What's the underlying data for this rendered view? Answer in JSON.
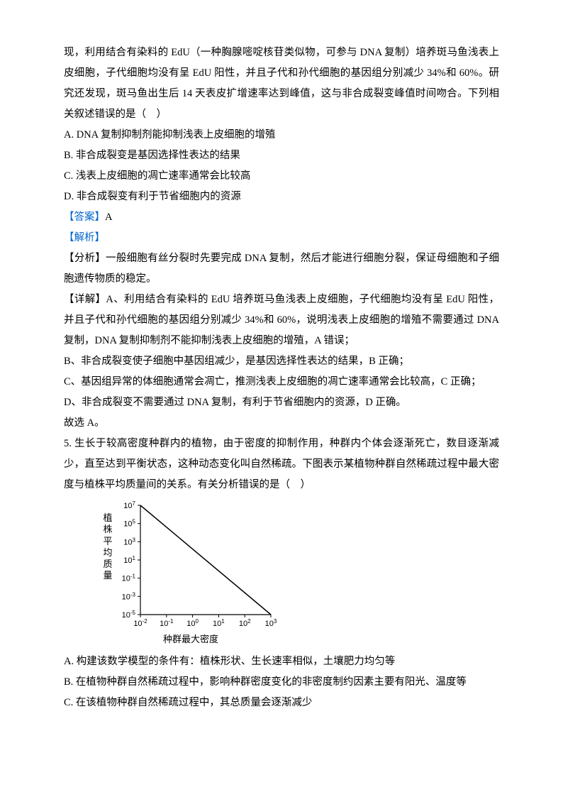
{
  "intro": "现，利用结合有染料的 EdU（一种胸腺嘧啶核苷类似物，可参与 DNA 复制）培养斑马鱼浅表上皮细胞，子代细胞均没有呈 EdU 阳性，并且子代和孙代细胞的基因组分别减少 34%和 60%。研究还发现，斑马鱼出生后 14 天表皮扩增速率达到峰值，这与非合成裂变峰值时间吻合。下列相关叙述错误的是（　）",
  "opts4": {
    "A": "A. DNA 复制抑制剂能抑制浅表上皮细胞的增殖",
    "B": "B. 非合成裂变是基因选择性表达的结果",
    "C": "C. 浅表上皮细胞的凋亡速率通常会比较高",
    "D": "D. 非合成裂变有利于节省细胞内的资源"
  },
  "answer4_label": "【答案】",
  "answer4_value": "A",
  "jiexi_label": "【解析】",
  "fenxi": "【分析】一般细胞有丝分裂时先要完成 DNA 复制，然后才能进行细胞分裂，保证母细胞和子细胞遗传物质的稳定。",
  "xiangjie_A": "【详解】A、利用结合有染料的 EdU 培养斑马鱼浅表上皮细胞，子代细胞均没有呈 EdU 阳性，并且子代和孙代细胞的基因组分别减少 34%和 60%，说明浅表上皮细胞的增殖不需要通过 DNA 复制，DNA 复制抑制剂不能抑制浅表上皮细胞的增殖，A 错误；",
  "xiangjie_B": "B、非合成裂变使子细胞中基因组减少，是基因选择性表达的结果，B 正确；",
  "xiangjie_C": "C、基因组异常的体细胞通常会凋亡，推测浅表上皮细胞的凋亡速率通常会比较高，C 正确；",
  "xiangjie_D": "D、非合成裂变不需要通过 DNA 复制，有利于节省细胞内的资源，D 正确。",
  "guxuan": "故选 A。",
  "q5": "5. 生长于较高密度种群内的植物，由于密度的抑制作用，种群内个体会逐渐死亡，数目逐渐减少，直至达到平衡状态，这种动态变化叫自然稀疏。下图表示某植物种群自然稀疏过程中最大密度与植株平均质量间的关系。有关分析错误的是（　）",
  "chart": {
    "type": "line",
    "x_ticks": [
      -2,
      -1,
      0,
      1,
      2,
      3
    ],
    "x_tick_labels": [
      "10⁻²",
      "10⁻¹",
      "10⁰",
      "10¹",
      "10²",
      "10³"
    ],
    "y_ticks": [
      -5,
      -3,
      -1,
      1,
      3,
      5,
      7
    ],
    "y_tick_labels": [
      "10⁻⁵",
      "10⁻³",
      "10⁻¹",
      "10¹",
      "10³",
      "10⁵",
      "10⁷"
    ],
    "line": {
      "x1": -2,
      "y1": 7,
      "x2": 3,
      "y2": -5
    },
    "ylabel": "植株平均质量",
    "xlabel": "种群最大密度",
    "axis_color": "#000000",
    "line_color": "#000000",
    "line_width": 1.5,
    "background": "#ffffff",
    "tick_font_size": 11
  },
  "opts5": {
    "A": "A. 构建该数学模型的条件有：植株形状、生长速率相似，土壤肥力均匀等",
    "B": "B. 在植物种群自然稀疏过程中，影响种群密度变化的非密度制约因素主要有阳光、温度等",
    "C": "C. 在该植物种群自然稀疏过程中，其总质量会逐渐减少"
  }
}
